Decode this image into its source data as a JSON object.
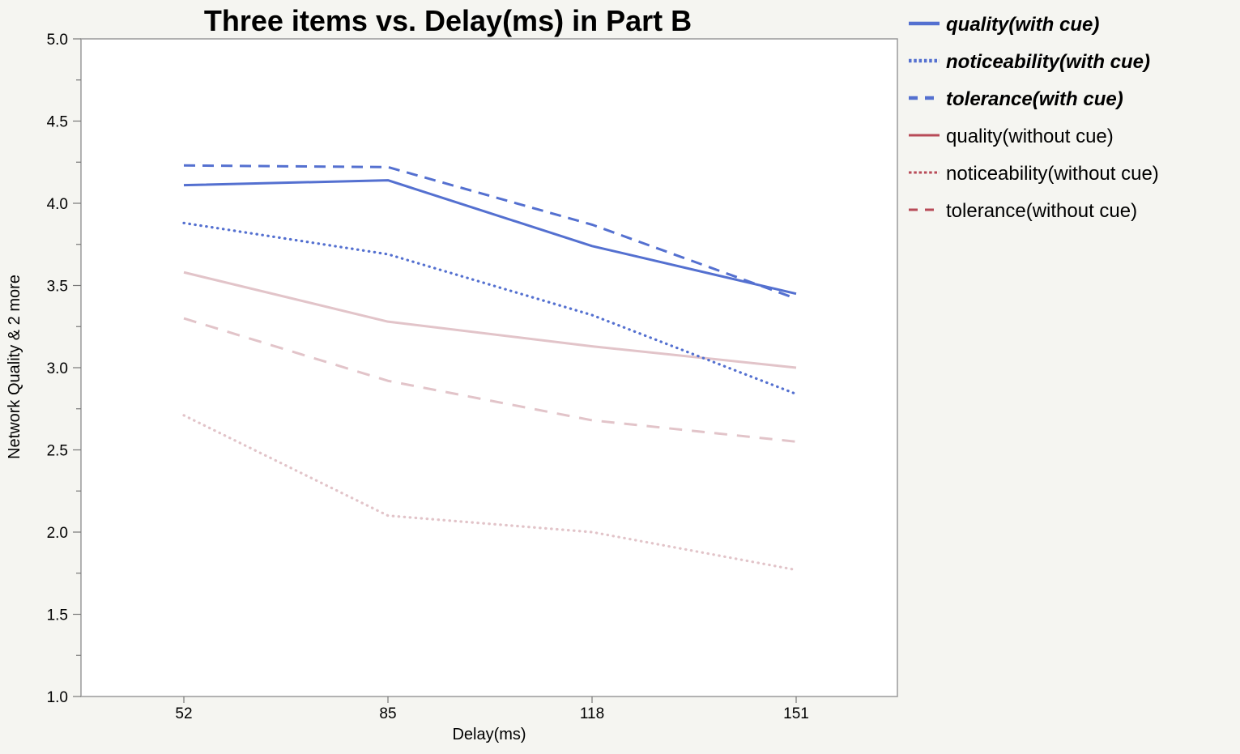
{
  "chart_data": {
    "type": "line",
    "title": "Three items vs. Delay(ms) in Part B",
    "xlabel": "Delay(ms)",
    "ylabel": "Network Quality & 2 more",
    "categories": [
      "52",
      "85",
      "118",
      "151"
    ],
    "ylim": [
      1.0,
      5.0
    ],
    "yticks": [
      "1.0",
      "1.5",
      "2.0",
      "2.5",
      "3.0",
      "3.5",
      "4.0",
      "4.5",
      "5.0"
    ],
    "grid": false,
    "legend_position": "right",
    "series": [
      {
        "name": "quality(with cue)",
        "values": [
          4.11,
          4.14,
          3.74,
          3.45
        ],
        "color": "#5470d0",
        "style": "solid",
        "emphasized": true
      },
      {
        "name": "noticeability(with cue)",
        "values": [
          3.88,
          3.69,
          3.32,
          2.84
        ],
        "color": "#5470d0",
        "style": "dotted",
        "emphasized": true
      },
      {
        "name": "tolerance(with cue)",
        "values": [
          4.23,
          4.22,
          3.87,
          3.42
        ],
        "color": "#5470d0",
        "style": "dashed",
        "emphasized": true
      },
      {
        "name": "quality(without cue)",
        "values": [
          3.58,
          3.28,
          3.13,
          3.0
        ],
        "color": "#b84a58",
        "line_color": "#e2c4c9",
        "style": "solid",
        "emphasized": false
      },
      {
        "name": "noticeability(without cue)",
        "values": [
          2.71,
          2.1,
          2.0,
          1.77
        ],
        "color": "#b84a58",
        "line_color": "#e2c4c9",
        "style": "dotted",
        "emphasized": false
      },
      {
        "name": "tolerance(without cue)",
        "values": [
          3.3,
          2.92,
          2.68,
          2.55
        ],
        "color": "#b84a58",
        "line_color": "#e2c4c9",
        "style": "dashed",
        "emphasized": false
      }
    ]
  }
}
